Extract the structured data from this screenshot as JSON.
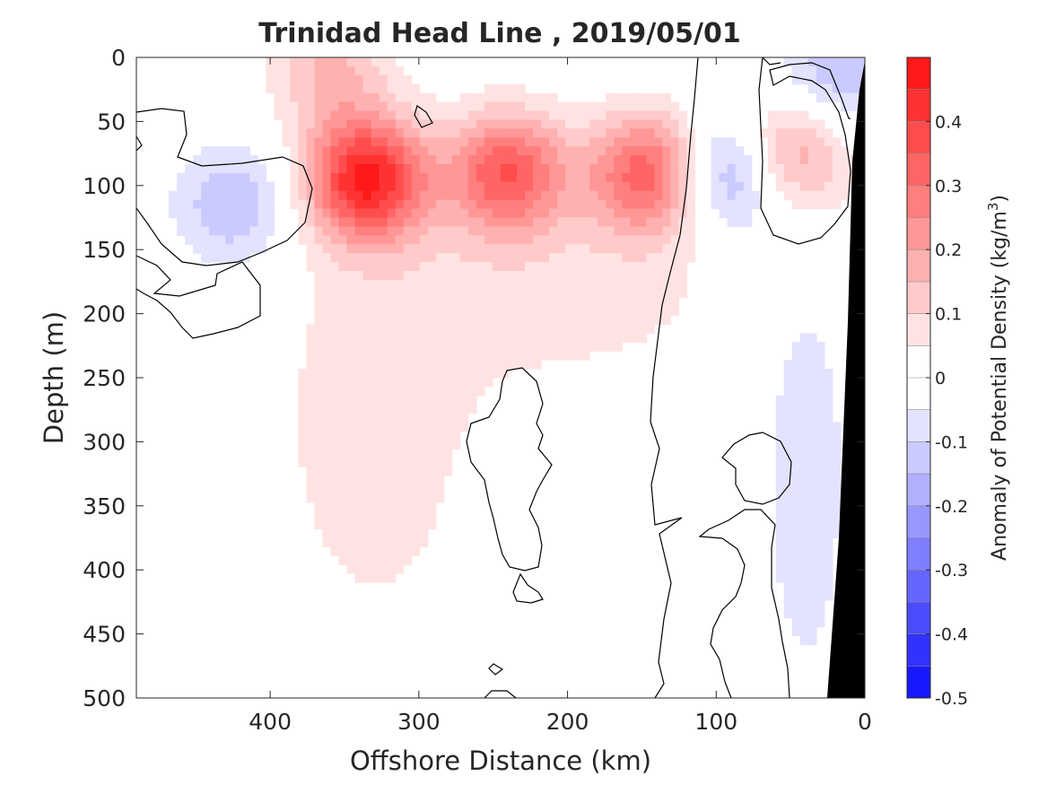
{
  "chart_data": {
    "type": "heatmap",
    "title": "Trinidad Head Line , 2019/05/01",
    "xlabel": "Offshore Distance (km)",
    "ylabel": "Depth (m)",
    "xlim": [
      490,
      0
    ],
    "ylim": [
      0,
      500
    ],
    "x_reversed": true,
    "y_reversed": true,
    "xticks": [
      400,
      300,
      200,
      100,
      0
    ],
    "xtick_labels": [
      "400",
      "300",
      "200",
      "100",
      "0"
    ],
    "yticks": [
      0,
      50,
      100,
      150,
      200,
      250,
      300,
      350,
      400,
      450,
      500
    ],
    "ytick_labels": [
      "0",
      "50",
      "100",
      "150",
      "200",
      "250",
      "300",
      "350",
      "400",
      "450",
      "500"
    ],
    "colorbar": {
      "label_prefix": "Anomaly of Potential Density (kg/m",
      "label_superscript": "3",
      "label_suffix": ")",
      "limits": [
        -0.5,
        0.5
      ],
      "level_step": 0.05,
      "ticks": [
        0.4,
        0.3,
        0.2,
        0.1,
        0,
        -0.1,
        -0.2,
        -0.3,
        -0.4,
        -0.5
      ],
      "tick_labels": [
        "0.4",
        "0.3",
        "0.2",
        "0.1",
        "0",
        "-0.1",
        "-0.2",
        "-0.3",
        "-0.4",
        "-0.5"
      ],
      "colormap": "blue-white-red",
      "neutral_band": [
        -0.05,
        0.05
      ]
    },
    "features": [
      {
        "kind": "positive_core",
        "x_km": 335,
        "depth_m": 95,
        "anomaly": 0.45
      },
      {
        "kind": "positive_core",
        "x_km": 240,
        "depth_m": 90,
        "anomaly": 0.33
      },
      {
        "kind": "positive_core",
        "x_km": 145,
        "depth_m": 90,
        "anomaly": 0.33
      },
      {
        "kind": "positive_core",
        "x_km": 50,
        "depth_m": 75,
        "anomaly": 0.25
      },
      {
        "kind": "positive_core",
        "x_km": 360,
        "depth_m": 10,
        "anomaly": 0.15
      },
      {
        "kind": "negative_core",
        "x_km": 425,
        "depth_m": 115,
        "anomaly": -0.15
      },
      {
        "kind": "negative_core",
        "x_km": 90,
        "depth_m": 90,
        "anomaly": -0.25
      },
      {
        "kind": "negative_core",
        "x_km": 20,
        "depth_m": 15,
        "anomaly": -0.15
      }
    ],
    "zero_contour_color": "#000000",
    "bathymetry_color": "#000000"
  }
}
